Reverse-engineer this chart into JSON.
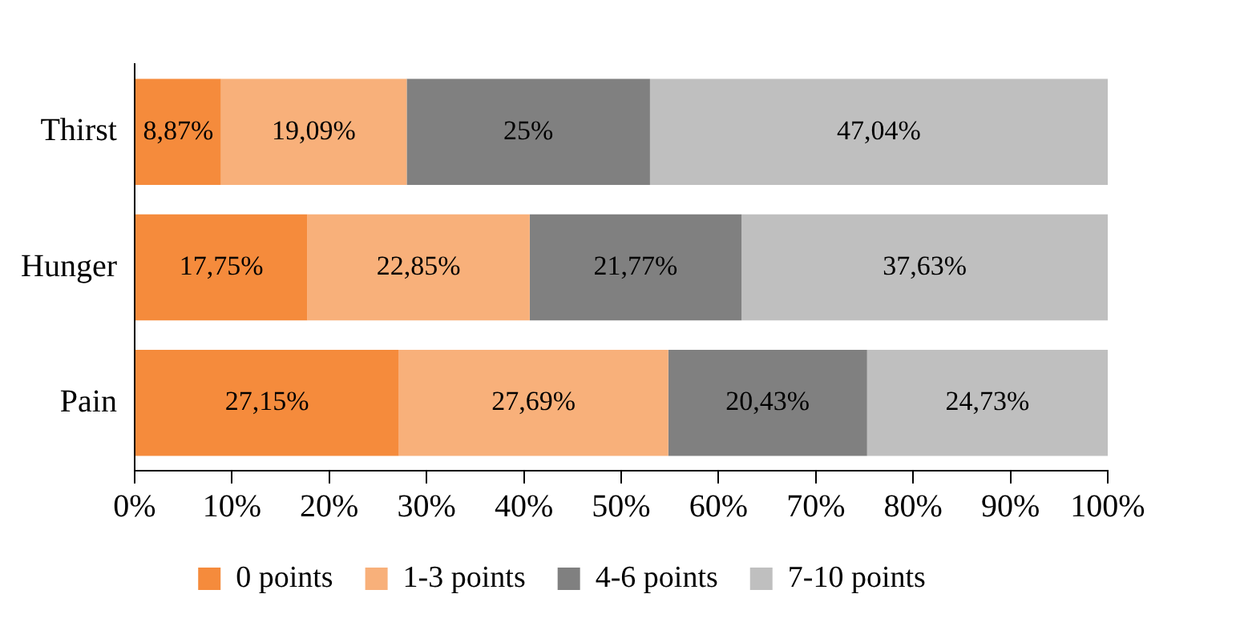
{
  "chart_data": {
    "type": "bar",
    "orientation": "horizontal",
    "stacked": true,
    "categories": [
      "Thirst",
      "Hunger",
      "Pain"
    ],
    "series": [
      {
        "name": "0 points",
        "color": "#f58b3c",
        "values": [
          8.87,
          17.75,
          27.15
        ],
        "value_labels": [
          "8,87%",
          "17,75%",
          "27,15%"
        ]
      },
      {
        "name": "1-3 points",
        "color": "#f8b07a",
        "values": [
          19.09,
          22.85,
          27.69
        ],
        "value_labels": [
          "19,09%",
          "22,85%",
          "27,69%"
        ]
      },
      {
        "name": "4-6 points",
        "color": "#808080",
        "values": [
          25,
          21.77,
          20.43
        ],
        "value_labels": [
          "25%",
          "21,77%",
          "20,43%"
        ]
      },
      {
        "name": "7-10 points",
        "color": "#bfbfbf",
        "values": [
          47.04,
          37.63,
          24.73
        ],
        "value_labels": [
          "47,04%",
          "37,63%",
          "24,73%"
        ]
      }
    ],
    "xlim": [
      0,
      100
    ],
    "xticks": [
      {
        "value": 0,
        "label": "0%"
      },
      {
        "value": 10,
        "label": "10%"
      },
      {
        "value": 20,
        "label": "20%"
      },
      {
        "value": 30,
        "label": "30%"
      },
      {
        "value": 40,
        "label": "40%"
      },
      {
        "value": 50,
        "label": "50%"
      },
      {
        "value": 60,
        "label": "60%"
      },
      {
        "value": 70,
        "label": "70%"
      },
      {
        "value": 80,
        "label": "80%"
      },
      {
        "value": 90,
        "label": "90%"
      },
      {
        "value": 100,
        "label": "100%"
      }
    ],
    "grid": false,
    "legend": "bottom"
  }
}
